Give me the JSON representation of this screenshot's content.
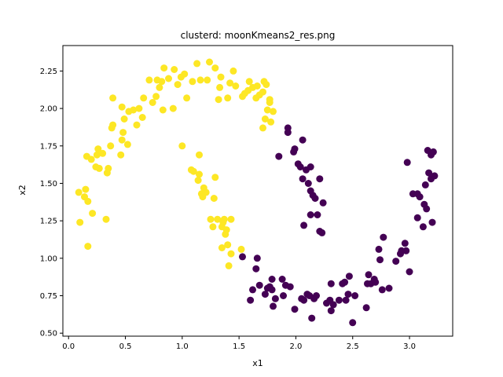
{
  "chart_data": {
    "type": "scatter",
    "title": "clusterd: moonKmeans2_res.png",
    "xlabel": "x1",
    "ylabel": "x2",
    "xlim": [
      -0.05,
      3.38
    ],
    "ylim": [
      0.48,
      2.42
    ],
    "xticks": [
      "0.0",
      "0.5",
      "1.0",
      "1.5",
      "2.0",
      "2.5",
      "3.0"
    ],
    "xtick_values": [
      0.0,
      0.5,
      1.0,
      1.5,
      2.0,
      2.5,
      3.0
    ],
    "yticks": [
      "0.50",
      "0.75",
      "1.00",
      "1.25",
      "1.50",
      "1.75",
      "2.00",
      "2.25"
    ],
    "ytick_values": [
      0.5,
      0.75,
      1.0,
      1.25,
      1.5,
      1.75,
      2.0,
      2.25
    ],
    "grid": false,
    "legend": "none",
    "series": [
      {
        "color": "#fde725",
        "points": [
          [
            0.09,
            1.44
          ],
          [
            0.1,
            1.24
          ],
          [
            0.14,
            1.41
          ],
          [
            0.15,
            1.46
          ],
          [
            0.17,
            1.08
          ],
          [
            0.17,
            1.38
          ],
          [
            0.16,
            1.68
          ],
          [
            0.2,
            1.66
          ],
          [
            0.21,
            1.3
          ],
          [
            0.24,
            1.61
          ],
          [
            0.25,
            1.69
          ],
          [
            0.26,
            1.73
          ],
          [
            0.27,
            1.6
          ],
          [
            0.3,
            1.7
          ],
          [
            0.33,
            1.26
          ],
          [
            0.34,
            1.57
          ],
          [
            0.35,
            1.6
          ],
          [
            0.37,
            1.75
          ],
          [
            0.38,
            1.87
          ],
          [
            0.39,
            1.89
          ],
          [
            0.39,
            2.07
          ],
          [
            0.46,
            1.69
          ],
          [
            0.47,
            1.79
          ],
          [
            0.47,
            2.01
          ],
          [
            0.48,
            1.84
          ],
          [
            0.49,
            1.93
          ],
          [
            0.52,
            1.76
          ],
          [
            0.53,
            1.98
          ],
          [
            0.57,
            1.99
          ],
          [
            0.6,
            1.89
          ],
          [
            0.62,
            2.0
          ],
          [
            0.65,
            1.94
          ],
          [
            0.66,
            2.07
          ],
          [
            0.71,
            2.19
          ],
          [
            0.74,
            2.04
          ],
          [
            0.77,
            2.08
          ],
          [
            0.78,
            2.19
          ],
          [
            0.8,
            2.14
          ],
          [
            0.82,
            2.18
          ],
          [
            0.83,
            1.99
          ],
          [
            0.84,
            2.27
          ],
          [
            0.88,
            2.2
          ],
          [
            0.92,
            2.0
          ],
          [
            0.93,
            2.26
          ],
          [
            0.96,
            2.16
          ],
          [
            0.99,
            2.21
          ],
          [
            1.0,
            1.75
          ],
          [
            1.02,
            2.23
          ],
          [
            1.04,
            2.07
          ],
          [
            1.08,
            1.59
          ],
          [
            1.09,
            2.18
          ],
          [
            1.1,
            1.58
          ],
          [
            1.13,
            2.3
          ],
          [
            1.14,
            1.52
          ],
          [
            1.15,
            1.56
          ],
          [
            1.15,
            1.69
          ],
          [
            1.16,
            2.19
          ],
          [
            1.17,
            1.43
          ],
          [
            1.18,
            1.41
          ],
          [
            1.19,
            1.47
          ],
          [
            1.21,
            1.44
          ],
          [
            1.22,
            2.19
          ],
          [
            1.24,
            2.31
          ],
          [
            1.25,
            1.26
          ],
          [
            1.27,
            1.21
          ],
          [
            1.28,
            1.4
          ],
          [
            1.29,
            1.54
          ],
          [
            1.29,
            2.27
          ],
          [
            1.31,
            1.26
          ],
          [
            1.32,
            2.06
          ],
          [
            1.33,
            2.14
          ],
          [
            1.34,
            2.21
          ],
          [
            1.35,
            1.07
          ],
          [
            1.35,
            1.21
          ],
          [
            1.36,
            1.24
          ],
          [
            1.37,
            1.26
          ],
          [
            1.38,
            1.16
          ],
          [
            1.39,
            1.19
          ],
          [
            1.4,
            1.09
          ],
          [
            1.4,
            2.07
          ],
          [
            1.41,
            0.95
          ],
          [
            1.42,
            2.17
          ],
          [
            1.43,
            1.26
          ],
          [
            1.43,
            1.03
          ],
          [
            1.45,
            2.25
          ],
          [
            1.47,
            2.15
          ],
          [
            1.52,
            1.06
          ],
          [
            1.53,
            2.08
          ],
          [
            1.55,
            2.1
          ],
          [
            1.58,
            2.12
          ],
          [
            1.59,
            2.18
          ],
          [
            1.62,
            2.14
          ],
          [
            1.65,
            2.07
          ],
          [
            1.66,
            2.15
          ],
          [
            1.68,
            2.09
          ],
          [
            1.71,
            1.87
          ],
          [
            1.71,
            2.11
          ],
          [
            1.72,
            2.18
          ],
          [
            1.73,
            1.93
          ],
          [
            1.74,
            2.16
          ],
          [
            1.75,
            1.99
          ],
          [
            1.77,
            2.06
          ],
          [
            1.77,
            2.04
          ],
          [
            1.78,
            1.91
          ],
          [
            1.8,
            1.98
          ]
        ]
      },
      {
        "color": "#440154",
        "points": [
          [
            1.53,
            1.01
          ],
          [
            1.6,
            0.72
          ],
          [
            1.62,
            0.79
          ],
          [
            1.65,
            0.93
          ],
          [
            1.66,
            1.0
          ],
          [
            1.68,
            0.82
          ],
          [
            1.73,
            0.76
          ],
          [
            1.75,
            0.8
          ],
          [
            1.77,
            0.81
          ],
          [
            1.79,
            0.79
          ],
          [
            1.79,
            0.86
          ],
          [
            1.8,
            0.68
          ],
          [
            1.82,
            0.73
          ],
          [
            1.85,
            1.68
          ],
          [
            1.88,
            0.86
          ],
          [
            1.89,
            0.75
          ],
          [
            1.91,
            0.82
          ],
          [
            1.93,
            1.87
          ],
          [
            1.93,
            1.84
          ],
          [
            1.95,
            0.81
          ],
          [
            1.98,
            1.71
          ],
          [
            1.99,
            0.66
          ],
          [
            1.99,
            1.73
          ],
          [
            2.02,
            1.63
          ],
          [
            2.04,
            1.61
          ],
          [
            2.05,
            0.73
          ],
          [
            2.06,
            1.79
          ],
          [
            2.06,
            1.53
          ],
          [
            2.07,
            1.22
          ],
          [
            2.07,
            0.72
          ],
          [
            2.09,
            1.59
          ],
          [
            2.1,
            0.76
          ],
          [
            2.11,
            1.5
          ],
          [
            2.12,
            0.75
          ],
          [
            2.13,
            1.29
          ],
          [
            2.13,
            1.45
          ],
          [
            2.13,
            1.61
          ],
          [
            2.14,
            0.6
          ],
          [
            2.15,
            1.42
          ],
          [
            2.16,
            0.73
          ],
          [
            2.17,
            1.4
          ],
          [
            2.18,
            0.75
          ],
          [
            2.19,
            1.29
          ],
          [
            2.21,
            1.53
          ],
          [
            2.21,
            1.18
          ],
          [
            2.23,
            1.17
          ],
          [
            2.24,
            1.37
          ],
          [
            2.27,
            0.7
          ],
          [
            2.3,
            0.72
          ],
          [
            2.31,
            0.83
          ],
          [
            2.31,
            0.65
          ],
          [
            2.33,
            0.69
          ],
          [
            2.38,
            0.72
          ],
          [
            2.41,
            0.83
          ],
          [
            2.43,
            0.84
          ],
          [
            2.44,
            0.72
          ],
          [
            2.46,
            0.76
          ],
          [
            2.47,
            0.88
          ],
          [
            2.5,
            0.57
          ],
          [
            2.52,
            0.75
          ],
          [
            2.62,
            0.67
          ],
          [
            2.63,
            0.83
          ],
          [
            2.64,
            0.89
          ],
          [
            2.66,
            0.83
          ],
          [
            2.69,
            0.86
          ],
          [
            2.7,
            0.84
          ],
          [
            2.73,
            1.06
          ],
          [
            2.74,
            0.99
          ],
          [
            2.76,
            0.79
          ],
          [
            2.77,
            1.14
          ],
          [
            2.82,
            0.8
          ],
          [
            2.88,
            0.98
          ],
          [
            2.92,
            1.03
          ],
          [
            2.93,
            1.05
          ],
          [
            2.96,
            1.1
          ],
          [
            2.97,
            1.05
          ],
          [
            2.98,
            1.64
          ],
          [
            3.0,
            0.91
          ],
          [
            3.03,
            1.43
          ],
          [
            3.07,
            1.27
          ],
          [
            3.07,
            1.43
          ],
          [
            3.09,
            1.41
          ],
          [
            3.12,
            1.21
          ],
          [
            3.13,
            1.36
          ],
          [
            3.14,
            1.49
          ],
          [
            3.15,
            1.33
          ],
          [
            3.16,
            1.72
          ],
          [
            3.17,
            1.57
          ],
          [
            3.19,
            1.53
          ],
          [
            3.19,
            1.69
          ],
          [
            3.2,
            1.24
          ],
          [
            3.21,
            1.71
          ],
          [
            3.22,
            1.55
          ]
        ]
      }
    ]
  }
}
